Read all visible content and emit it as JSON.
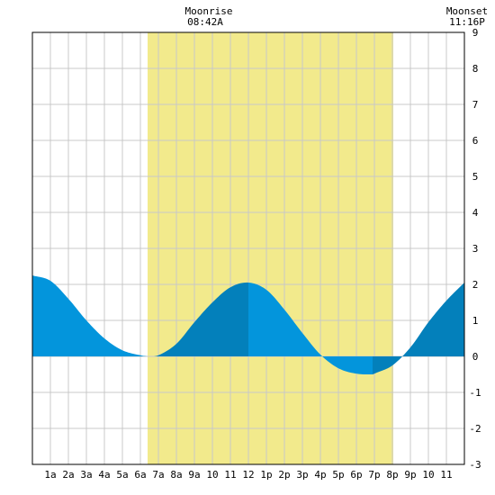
{
  "header": {
    "moonrise_label": "Moonrise",
    "moonrise_time": "08:42A",
    "moonset_label": "Moonset",
    "moonset_time": "11:16P"
  },
  "chart_data": {
    "type": "area",
    "title": "",
    "xlabel": "",
    "ylabel": "",
    "xlim": [
      0,
      24
    ],
    "ylim": [
      -3,
      9
    ],
    "grid": true,
    "x_tick_labels": [
      "1a",
      "2a",
      "3a",
      "4a",
      "5a",
      "6a",
      "7a",
      "8a",
      "9a",
      "10",
      "11",
      "12",
      "1p",
      "2p",
      "3p",
      "4p",
      "5p",
      "6p",
      "7p",
      "8p",
      "9p",
      "10",
      "11"
    ],
    "y_ticks": [
      -3,
      -2,
      -1,
      0,
      1,
      2,
      3,
      4,
      5,
      6,
      7,
      8,
      9
    ],
    "daylight_band": {
      "start_hour": 6.4,
      "end_hour": 20.05,
      "color": "#f2ea8c"
    },
    "colors": {
      "tide_light": "#0395dc",
      "tide_dark": "#0380bb",
      "grid": "#c8c8c8",
      "background": "#ffffff"
    },
    "series": [
      {
        "x": [
          0,
          1,
          2,
          3,
          4,
          5,
          6,
          6.5,
          7,
          8,
          9,
          10,
          11,
          12,
          13,
          14,
          15,
          16,
          17,
          18,
          18.9,
          19,
          20,
          21,
          22,
          23,
          24
        ],
        "values": [
          2.25,
          2.1,
          1.6,
          1.0,
          0.5,
          0.17,
          0.03,
          0.0,
          0.03,
          0.35,
          0.95,
          1.5,
          1.92,
          2.05,
          1.85,
          1.3,
          0.65,
          0.05,
          -0.33,
          -0.48,
          -0.5,
          -0.48,
          -0.25,
          0.25,
          0.95,
          1.55,
          2.05
        ]
      }
    ],
    "tide_events": [
      {
        "type": "high",
        "x": 0,
        "value": 2.25
      },
      {
        "type": "low",
        "x": 6.5,
        "value": 0.0
      },
      {
        "type": "high",
        "x": 12,
        "value": 2.05
      },
      {
        "type": "low",
        "x": 18.9,
        "value": -0.5
      }
    ]
  }
}
